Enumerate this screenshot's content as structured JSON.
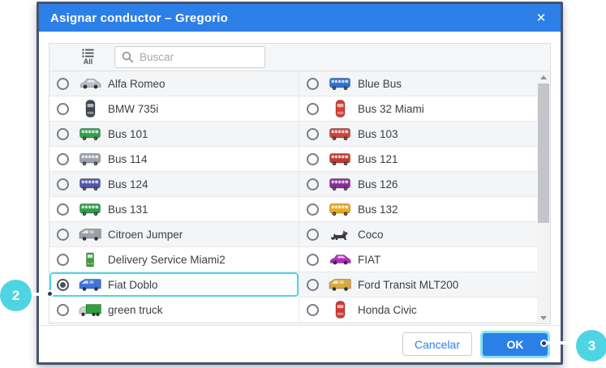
{
  "modal": {
    "title": "Asignar conductor – Gregorio",
    "close_label": "✕"
  },
  "toolbar": {
    "filter_label": "All",
    "search_placeholder": "Buscar",
    "search_value": ""
  },
  "vehicles": {
    "left": [
      {
        "name": "Alfa Romeo",
        "icon": "car",
        "color": "#b9bec6",
        "selected": false
      },
      {
        "name": "BMW 735i",
        "icon": "car-top",
        "color": "#3f4650",
        "selected": false
      },
      {
        "name": "Bus 101",
        "icon": "bus",
        "color": "#33a04a",
        "selected": false
      },
      {
        "name": "Bus 114",
        "icon": "bus",
        "color": "#9ba1a8",
        "selected": false
      },
      {
        "name": "Bus 124",
        "icon": "bus",
        "color": "#5156ae",
        "selected": false
      },
      {
        "name": "Bus 131",
        "icon": "bus",
        "color": "#2f9e47",
        "selected": false
      },
      {
        "name": "Citroen Jumper",
        "icon": "van",
        "color": "#9aa0a6",
        "selected": false
      },
      {
        "name": "Delivery Service Miami2",
        "icon": "truck-front",
        "color": "#3f9e46",
        "selected": false
      },
      {
        "name": "Fiat Doblo",
        "icon": "van",
        "color": "#3d74d8",
        "selected": true
      },
      {
        "name": "green truck",
        "icon": "truck",
        "color": "#2fa13c",
        "selected": false
      }
    ],
    "right": [
      {
        "name": "Blue Bus",
        "icon": "bus",
        "color": "#2f6fd3",
        "selected": false
      },
      {
        "name": "Bus 32 Miami",
        "icon": "car-top",
        "color": "#d23f35",
        "selected": false
      },
      {
        "name": "Bus 103",
        "icon": "bus",
        "color": "#c8463c",
        "selected": false
      },
      {
        "name": "Bus 121",
        "icon": "bus",
        "color": "#c03a30",
        "selected": false
      },
      {
        "name": "Bus 126",
        "icon": "bus",
        "color": "#8a2ba0",
        "selected": false
      },
      {
        "name": "Bus 132",
        "icon": "bus",
        "color": "#e8a91c",
        "selected": false
      },
      {
        "name": "Coco",
        "icon": "cat",
        "color": "#343b43",
        "selected": false
      },
      {
        "name": "FIAT",
        "icon": "car",
        "color": "#b32bc4",
        "selected": false
      },
      {
        "name": "Ford Transit MLT200",
        "icon": "van",
        "color": "#d8a93f",
        "selected": false
      },
      {
        "name": "Honda Civic",
        "icon": "car-top",
        "color": "#d0392e",
        "selected": false
      }
    ]
  },
  "footer": {
    "cancel_label": "Cancelar",
    "ok_label": "OK"
  },
  "callouts": [
    {
      "number": "2"
    },
    {
      "number": "3"
    }
  ],
  "colors": {
    "header_blue": "#2d7fe8",
    "ok_blue": "#2d7fe8",
    "link_blue": "#2d7fe8",
    "badge_cyan": "#4fd4e3",
    "selection_cyan": "#4dd6e6",
    "modal_border": "#45536f"
  }
}
